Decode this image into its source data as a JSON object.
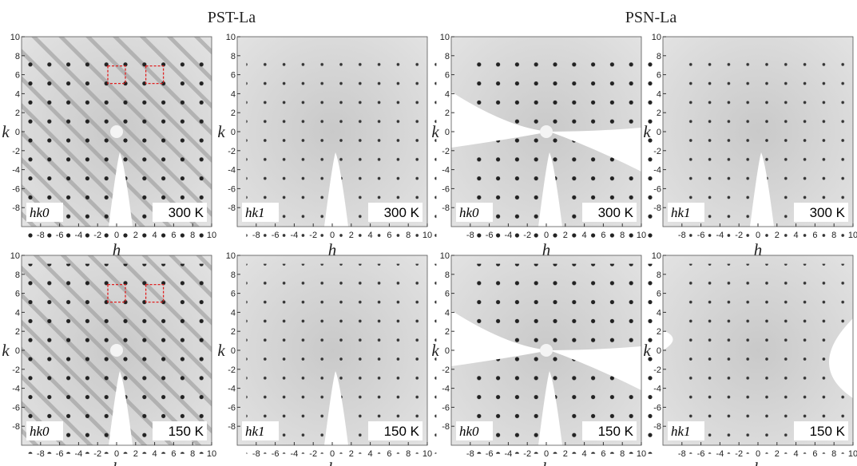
{
  "titles": [
    "PST-La",
    "PSN-La"
  ],
  "axes": {
    "xlim": [
      -10,
      10
    ],
    "ylim": [
      -10,
      10
    ],
    "xticks": [
      -8,
      -6,
      -4,
      -2,
      0,
      2,
      4,
      6,
      8,
      10
    ],
    "yticks": [
      -8,
      -6,
      -4,
      -2,
      0,
      2,
      4,
      6,
      8,
      10
    ],
    "xlabel": "h",
    "ylabel": "k"
  },
  "panels": [
    {
      "plane": "hk0",
      "temperature": "300 K"
    },
    {
      "plane": "hk1",
      "temperature": "300 K"
    },
    {
      "plane": "hk0",
      "temperature": "300 K"
    },
    {
      "plane": "hk1",
      "temperature": "300 K"
    },
    {
      "plane": "hk0",
      "temperature": "150 K"
    },
    {
      "plane": "hk1",
      "temperature": "150 K"
    },
    {
      "plane": "hk0",
      "temperature": "150 K"
    },
    {
      "plane": "hk1",
      "temperature": "150 K"
    }
  ]
}
